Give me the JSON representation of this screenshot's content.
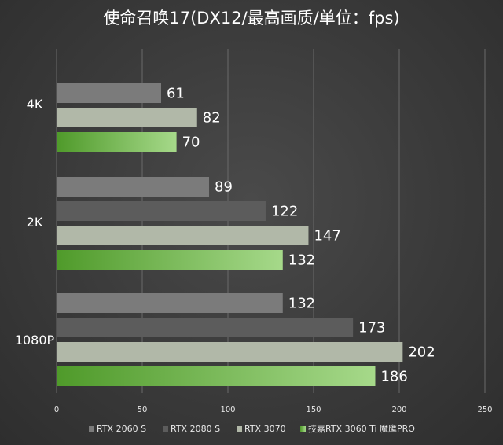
{
  "chart_data": {
    "type": "bar",
    "orientation": "horizontal",
    "title": "使命召唤17(DX12/最高画质/单位：fps)",
    "categories": [
      "4K",
      "2K",
      "1080P"
    ],
    "series": [
      {
        "name": "RTX 2060 S",
        "values": [
          61,
          89,
          132
        ],
        "color": "#7b7b7b"
      },
      {
        "name": "RTX 2080 S",
        "values": [
          null,
          122,
          173
        ],
        "color": "#5c5c5c"
      },
      {
        "name": "RTX 3070",
        "values": [
          82,
          147,
          202
        ],
        "color": "#b1b8a8"
      },
      {
        "name": "技嘉RTX 3060 Ti 魔鹰PRO",
        "values": [
          70,
          132,
          186
        ],
        "color": "#6cbf3e",
        "gradient_from": "#4f9a2a",
        "gradient_to": "#a6d98a"
      }
    ],
    "xlim": [
      0,
      250
    ],
    "xticks": [
      "0",
      "50",
      "100",
      "150",
      "200",
      "250"
    ],
    "grid": true,
    "legend_position": "bottom"
  }
}
